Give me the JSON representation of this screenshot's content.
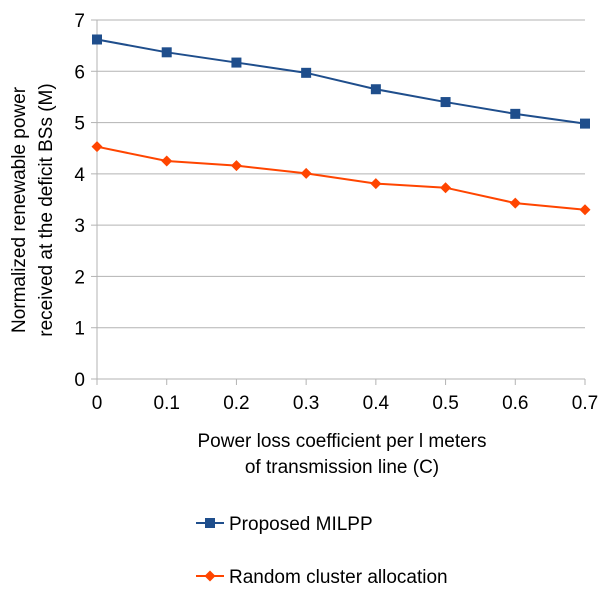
{
  "chart_data": {
    "type": "line",
    "title": "",
    "xlabel": [
      "Power loss coefficient per l meters",
      "of transmission line (C)"
    ],
    "ylabel": [
      "Normalized renewable power",
      "received at the deficit BSs (M)"
    ],
    "x": [
      0,
      0.1,
      0.2,
      0.3,
      0.4,
      0.5,
      0.6,
      0.7
    ],
    "x_tick_labels": [
      "0",
      "0.1",
      "0.2",
      "0.3",
      "0.4",
      "0.5",
      "0.6",
      "0.7"
    ],
    "y_tick_labels": [
      "0",
      "1",
      "2",
      "3",
      "4",
      "5",
      "6",
      "7"
    ],
    "xlim": [
      0,
      0.7
    ],
    "ylim": [
      0,
      7
    ],
    "grid": "horizontal",
    "legend_position": "bottom",
    "series": [
      {
        "name": "Proposed MILPP",
        "color": "#1f4e8c",
        "marker": "square",
        "values": [
          6.62,
          6.37,
          6.17,
          5.97,
          5.65,
          5.4,
          5.17,
          4.98
        ]
      },
      {
        "name": "Random cluster allocation",
        "color": "#ff4500",
        "marker": "diamond",
        "values": [
          4.53,
          4.25,
          4.16,
          4.01,
          3.81,
          3.73,
          3.43,
          3.3
        ]
      }
    ]
  }
}
